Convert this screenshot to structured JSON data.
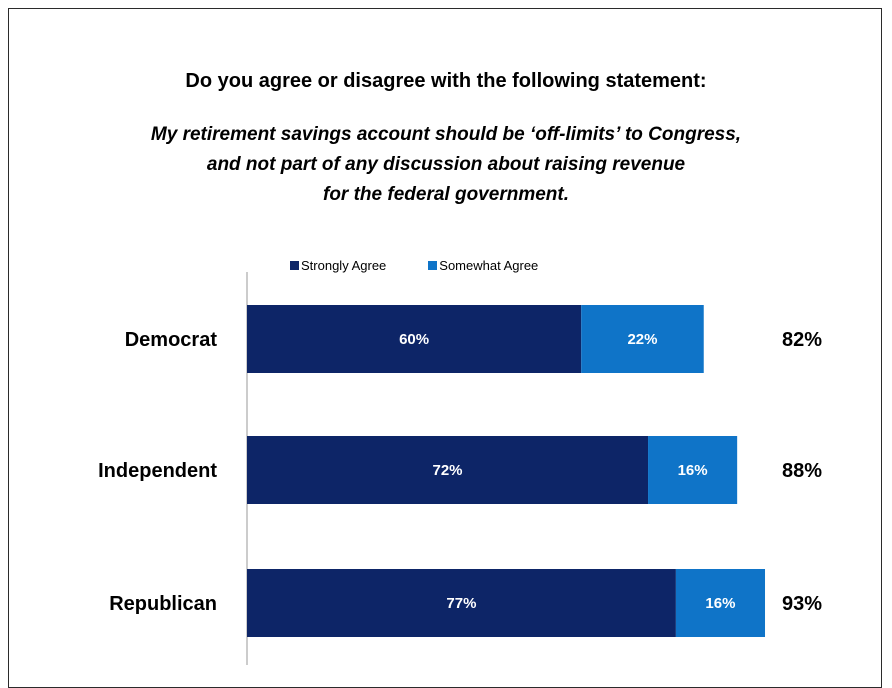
{
  "chart_data": {
    "type": "bar",
    "orientation": "horizontal",
    "stacked": true,
    "title": "Do you agree or disagree with the following statement:",
    "subtitle_lines": [
      "My retirement savings account should be ‘off-limits’ to Congress,",
      "and not part of any discussion about raising revenue",
      "for the federal government."
    ],
    "categories": [
      "Democrat",
      "Independent",
      "Republican"
    ],
    "series": [
      {
        "name": "Strongly Agree",
        "values": [
          60,
          72,
          77
        ],
        "labels": [
          "60%",
          "72%",
          "77%"
        ],
        "color": "#0d2567"
      },
      {
        "name": "Somewhat Agree",
        "values": [
          22,
          16,
          16
        ],
        "labels": [
          "22%",
          "16%",
          "16%"
        ],
        "color": "#0f74c8"
      }
    ],
    "totals": [
      "82%",
      "88%",
      "93%"
    ],
    "xlim": [
      0,
      100
    ],
    "legend_position": "top",
    "grid": false
  }
}
